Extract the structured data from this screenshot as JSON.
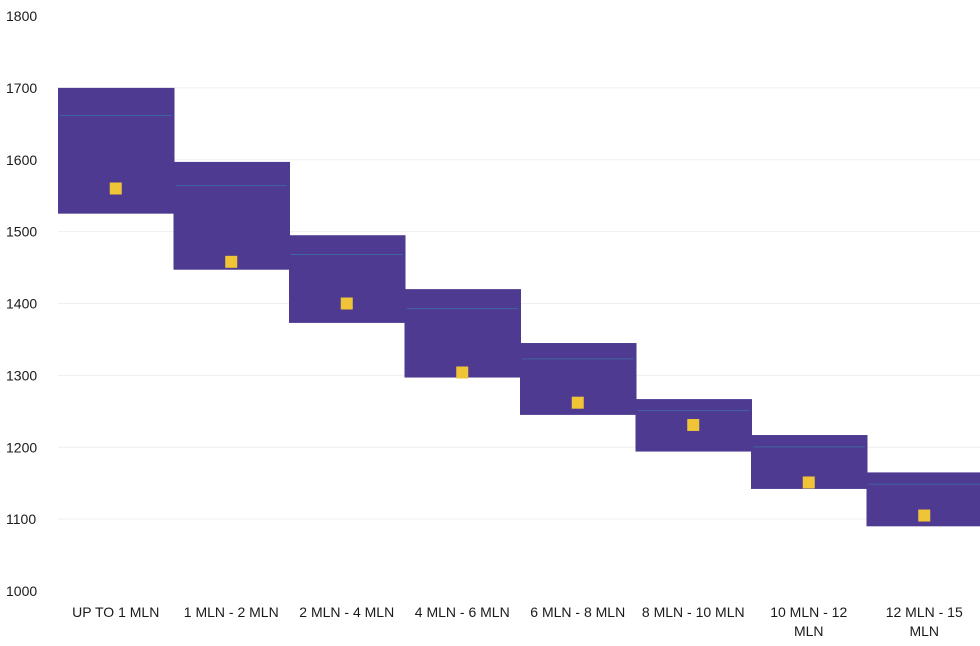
{
  "chart_data": {
    "type": "box",
    "title": "",
    "xlabel": "",
    "ylabel": "",
    "ylim": [
      1000,
      1800
    ],
    "yticks": [
      1000,
      1100,
      1200,
      1300,
      1400,
      1500,
      1600,
      1700,
      1800
    ],
    "grid": true,
    "categories": [
      "UP TO 1 MLN",
      "1 MLN - 2 MLN",
      "2 MLN - 4 MLN",
      "4 MLN - 6 MLN",
      "6 MLN - 8 MLN",
      "8 MLN - 10 MLN",
      "10 MLN  - 12 MLN",
      "12 MLN - 15 MLN"
    ],
    "range_high": [
      1700,
      1597,
      1495,
      1420,
      1345,
      1267,
      1217,
      1165
    ],
    "range_low": [
      1525,
      1447,
      1373,
      1297,
      1245,
      1194,
      1142,
      1090
    ],
    "average": [
      1560,
      1458,
      1400,
      1304,
      1262,
      1231,
      1151,
      1105
    ],
    "colors": {
      "range": "#4e3a91",
      "average": "#f0c437",
      "stripe": "#3d6fa3",
      "gridline": "#efefef"
    }
  }
}
